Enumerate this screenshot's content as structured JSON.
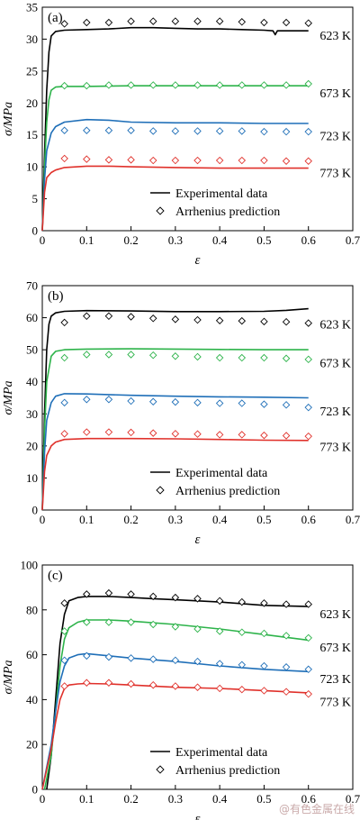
{
  "watermark": "@有色金属在线",
  "chart_data": [
    {
      "type": "line",
      "panel_label": "(a)",
      "xlabel": "ε",
      "ylabel": "σ/MPa",
      "xlim": [
        0,
        0.7
      ],
      "ylim": [
        0,
        35
      ],
      "xticks": [
        "0",
        "0.1",
        "0.2",
        "0.3",
        "0.4",
        "0.5",
        "0.6",
        "0.7"
      ],
      "yticks": [
        "0",
        "5",
        "10",
        "15",
        "20",
        "25",
        "30",
        "35"
      ],
      "legend": {
        "placement": "bottom-right",
        "entries": [
          "Experimental data",
          "Arrhenius prediction"
        ]
      },
      "series": [
        {
          "name": "623 K",
          "color": "#000000",
          "experimental": {
            "x": [
              0,
              0.005,
              0.01,
              0.015,
              0.02,
              0.03,
              0.05,
              0.1,
              0.15,
              0.2,
              0.25,
              0.3,
              0.35,
              0.4,
              0.45,
              0.5,
              0.52,
              0.525,
              0.53,
              0.55,
              0.6
            ],
            "y": [
              0,
              12,
              22,
              28,
              30.5,
              31.2,
              31.4,
              31.5,
              31.6,
              31.8,
              31.8,
              31.7,
              31.6,
              31.6,
              31.5,
              31.4,
              31.3,
              30.7,
              31.3,
              31.3,
              31.3
            ]
          },
          "prediction": {
            "x": [
              0.05,
              0.1,
              0.15,
              0.2,
              0.25,
              0.3,
              0.35,
              0.4,
              0.45,
              0.5,
              0.55,
              0.6
            ],
            "y": [
              32.4,
              32.6,
              32.6,
              32.8,
              32.8,
              32.8,
              32.8,
              32.8,
              32.7,
              32.6,
              32.6,
              32.5
            ]
          }
        },
        {
          "name": "673 K",
          "color": "#2db34a",
          "experimental": {
            "x": [
              0,
              0.005,
              0.01,
              0.015,
              0.02,
              0.03,
              0.05,
              0.1,
              0.2,
              0.3,
              0.4,
              0.5,
              0.6
            ],
            "y": [
              0,
              10,
              17,
              20.5,
              22,
              22.5,
              22.6,
              22.6,
              22.7,
              22.7,
              22.7,
              22.7,
              22.7
            ]
          },
          "prediction": {
            "x": [
              0.05,
              0.1,
              0.15,
              0.2,
              0.25,
              0.3,
              0.35,
              0.4,
              0.45,
              0.5,
              0.55,
              0.6
            ],
            "y": [
              22.7,
              22.7,
              22.8,
              22.8,
              22.8,
              22.8,
              22.8,
              22.8,
              22.8,
              22.8,
              22.8,
              23
            ]
          }
        },
        {
          "name": "723 K",
          "color": "#1f6fb8",
          "experimental": {
            "x": [
              0,
              0.005,
              0.01,
              0.02,
              0.03,
              0.05,
              0.1,
              0.15,
              0.2,
              0.3,
              0.4,
              0.5,
              0.6
            ],
            "y": [
              0,
              8,
              12.5,
              15.3,
              16.3,
              17,
              17.4,
              17.3,
              17,
              16.9,
              16.9,
              16.8,
              16.8
            ]
          },
          "prediction": {
            "x": [
              0.05,
              0.1,
              0.15,
              0.2,
              0.25,
              0.3,
              0.35,
              0.4,
              0.45,
              0.5,
              0.55,
              0.6
            ],
            "y": [
              15.7,
              15.7,
              15.7,
              15.7,
              15.6,
              15.6,
              15.6,
              15.6,
              15.6,
              15.5,
              15.5,
              15.5
            ]
          }
        },
        {
          "name": "773 K",
          "color": "#e0312b",
          "experimental": {
            "x": [
              0,
              0.005,
              0.01,
              0.02,
              0.03,
              0.05,
              0.1,
              0.15,
              0.2,
              0.3,
              0.4,
              0.5,
              0.6
            ],
            "y": [
              0,
              6,
              8.3,
              9.1,
              9.5,
              9.9,
              10.1,
              10.1,
              10,
              9.9,
              9.8,
              9.8,
              9.8
            ]
          },
          "prediction": {
            "x": [
              0.05,
              0.1,
              0.15,
              0.2,
              0.25,
              0.3,
              0.35,
              0.4,
              0.45,
              0.5,
              0.55,
              0.6
            ],
            "y": [
              11.3,
              11.2,
              11.1,
              11.1,
              11,
              11,
              11,
              11,
              11,
              11,
              10.9,
              10.9
            ]
          }
        }
      ]
    },
    {
      "type": "line",
      "panel_label": "(b)",
      "xlabel": "ε",
      "ylabel": "σ/MPa",
      "xlim": [
        0,
        0.7
      ],
      "ylim": [
        0,
        70
      ],
      "xticks": [
        "0",
        "0.1",
        "0.2",
        "0.3",
        "0.4",
        "0.5",
        "0.6",
        "0.7"
      ],
      "yticks": [
        "0",
        "10",
        "20",
        "30",
        "40",
        "50",
        "60",
        "70"
      ],
      "legend": {
        "placement": "bottom-right",
        "entries": [
          "Experimental data",
          "Arrhenius prediction"
        ]
      },
      "series": [
        {
          "name": "623 K",
          "color": "#000000",
          "experimental": {
            "x": [
              0,
              0.005,
              0.01,
              0.015,
              0.02,
              0.03,
              0.05,
              0.1,
              0.2,
              0.3,
              0.4,
              0.5,
              0.55,
              0.6
            ],
            "y": [
              0,
              30,
              50,
              58,
              60.5,
              61.5,
              62,
              62.2,
              62.1,
              61.9,
              61.9,
              62,
              62.3,
              62.8
            ]
          },
          "prediction": {
            "x": [
              0.05,
              0.1,
              0.15,
              0.2,
              0.25,
              0.3,
              0.35,
              0.4,
              0.45,
              0.5,
              0.55,
              0.6
            ],
            "y": [
              58.5,
              60.5,
              60.5,
              60.3,
              59.8,
              59.5,
              59.3,
              59.1,
              59,
              58.8,
              58.7,
              58.3
            ]
          }
        },
        {
          "name": "673 K",
          "color": "#2db34a",
          "experimental": {
            "x": [
              0,
              0.005,
              0.01,
              0.02,
              0.03,
              0.05,
              0.1,
              0.2,
              0.3,
              0.4,
              0.5,
              0.6
            ],
            "y": [
              0,
              25,
              40,
              48,
              49.5,
              50,
              50.2,
              50.3,
              50.2,
              50.1,
              50,
              50
            ]
          },
          "prediction": {
            "x": [
              0.05,
              0.1,
              0.15,
              0.2,
              0.25,
              0.3,
              0.35,
              0.4,
              0.45,
              0.5,
              0.55,
              0.6
            ],
            "y": [
              47.5,
              48.5,
              48.5,
              48.5,
              48.3,
              48,
              47.8,
              47.5,
              47.5,
              47.5,
              47.3,
              47
            ]
          }
        },
        {
          "name": "723 K",
          "color": "#1f6fb8",
          "experimental": {
            "x": [
              0,
              0.005,
              0.01,
              0.02,
              0.03,
              0.05,
              0.1,
              0.2,
              0.3,
              0.4,
              0.5,
              0.6
            ],
            "y": [
              0,
              18,
              28,
              33.5,
              35.5,
              36.3,
              36.2,
              35.8,
              35.5,
              35.3,
              35.2,
              35
            ]
          },
          "prediction": {
            "x": [
              0.05,
              0.1,
              0.15,
              0.2,
              0.25,
              0.3,
              0.35,
              0.4,
              0.45,
              0.5,
              0.55,
              0.6
            ],
            "y": [
              33.5,
              34.5,
              34.5,
              34,
              33.8,
              33.7,
              33.5,
              33.3,
              33.3,
              33,
              32.8,
              32
            ]
          }
        },
        {
          "name": "773 K",
          "color": "#e0312b",
          "experimental": {
            "x": [
              0,
              0.005,
              0.01,
              0.02,
              0.03,
              0.05,
              0.1,
              0.2,
              0.3,
              0.4,
              0.5,
              0.6
            ],
            "y": [
              0,
              12,
              17,
              20,
              21.2,
              22,
              22.3,
              22.3,
              22.2,
              22,
              21.8,
              21.7
            ]
          },
          "prediction": {
            "x": [
              0.05,
              0.1,
              0.15,
              0.2,
              0.25,
              0.3,
              0.35,
              0.4,
              0.45,
              0.5,
              0.55,
              0.6
            ],
            "y": [
              23.8,
              24.3,
              24.3,
              24.2,
              24,
              23.8,
              23.7,
              23.5,
              23.5,
              23.3,
              23.2,
              23
            ]
          }
        }
      ]
    },
    {
      "type": "line",
      "panel_label": "(c)",
      "xlabel": "ε",
      "ylabel": "σ/MPa",
      "xlim": [
        0,
        0.7
      ],
      "ylim": [
        0,
        100
      ],
      "xticks": [
        "0",
        "0.1",
        "0.2",
        "0.3",
        "0.4",
        "0.5",
        "0.6",
        "0.7"
      ],
      "yticks": [
        "0",
        "20",
        "40",
        "60",
        "80",
        "100"
      ],
      "legend": {
        "placement": "bottom-right",
        "entries": [
          "Experimental data",
          "Arrhenius prediction"
        ]
      },
      "series": [
        {
          "name": "623 K",
          "color": "#000000",
          "experimental": {
            "x": [
              0.01,
              0.02,
              0.03,
              0.04,
              0.05,
              0.06,
              0.08,
              0.1,
              0.15,
              0.2,
              0.25,
              0.3,
              0.4,
              0.5,
              0.6
            ],
            "y": [
              0,
              15,
              40,
              65,
              78,
              84,
              85.5,
              86,
              86,
              85.5,
              85,
              84.5,
              83.5,
              82,
              81.5
            ]
          },
          "prediction": {
            "x": [
              0.05,
              0.1,
              0.15,
              0.2,
              0.25,
              0.3,
              0.35,
              0.4,
              0.45,
              0.5,
              0.55,
              0.6
            ],
            "y": [
              83,
              87,
              87.5,
              87,
              86,
              85.5,
              85,
              84,
              83.5,
              83,
              82.5,
              82.5
            ]
          }
        },
        {
          "name": "673 K",
          "color": "#2db34a",
          "experimental": {
            "x": [
              0.005,
              0.02,
              0.03,
              0.04,
              0.05,
              0.06,
              0.08,
              0.1,
              0.15,
              0.2,
              0.3,
              0.4,
              0.5,
              0.6
            ],
            "y": [
              0,
              15,
              35,
              55,
              67,
              72,
              74.5,
              75.5,
              75.5,
              75,
              73.5,
              71.5,
              69,
              66.5
            ]
          },
          "prediction": {
            "x": [
              0.05,
              0.1,
              0.15,
              0.2,
              0.25,
              0.3,
              0.35,
              0.4,
              0.45,
              0.5,
              0.55,
              0.6
            ],
            "y": [
              70.5,
              74.5,
              74.5,
              74.5,
              73.5,
              72.5,
              71.5,
              70.5,
              70,
              69.5,
              68.5,
              67.5
            ]
          }
        },
        {
          "name": "723 K",
          "color": "#1f6fb8",
          "experimental": {
            "x": [
              0,
              0.02,
              0.03,
              0.04,
              0.05,
              0.06,
              0.08,
              0.1,
              0.15,
              0.2,
              0.3,
              0.4,
              0.5,
              0.6
            ],
            "y": [
              0,
              20,
              35,
              48,
              55,
              58.5,
              60,
              60.5,
              59.5,
              58.5,
              57,
              55,
              53.5,
              52.5
            ]
          },
          "prediction": {
            "x": [
              0.05,
              0.1,
              0.15,
              0.2,
              0.25,
              0.3,
              0.35,
              0.4,
              0.45,
              0.5,
              0.55,
              0.6
            ],
            "y": [
              57.5,
              59.5,
              59,
              58.5,
              58,
              57.5,
              57,
              56,
              55.5,
              55,
              54.5,
              53.5
            ]
          }
        },
        {
          "name": "773 K",
          "color": "#e0312b",
          "experimental": {
            "x": [
              0,
              0.02,
              0.03,
              0.04,
              0.05,
              0.06,
              0.08,
              0.1,
              0.15,
              0.2,
              0.3,
              0.4,
              0.5,
              0.6
            ],
            "y": [
              0,
              18,
              30,
              40,
              45,
              46.5,
              47,
              47.2,
              47,
              46.5,
              45.5,
              45,
              44,
              43
            ]
          },
          "prediction": {
            "x": [
              0.05,
              0.1,
              0.15,
              0.2,
              0.25,
              0.3,
              0.35,
              0.4,
              0.45,
              0.5,
              0.55,
              0.6
            ],
            "y": [
              46,
              47.5,
              47.5,
              47,
              46.5,
              46,
              45.5,
              45,
              44.5,
              44,
              43.5,
              42.5
            ]
          }
        }
      ]
    }
  ]
}
